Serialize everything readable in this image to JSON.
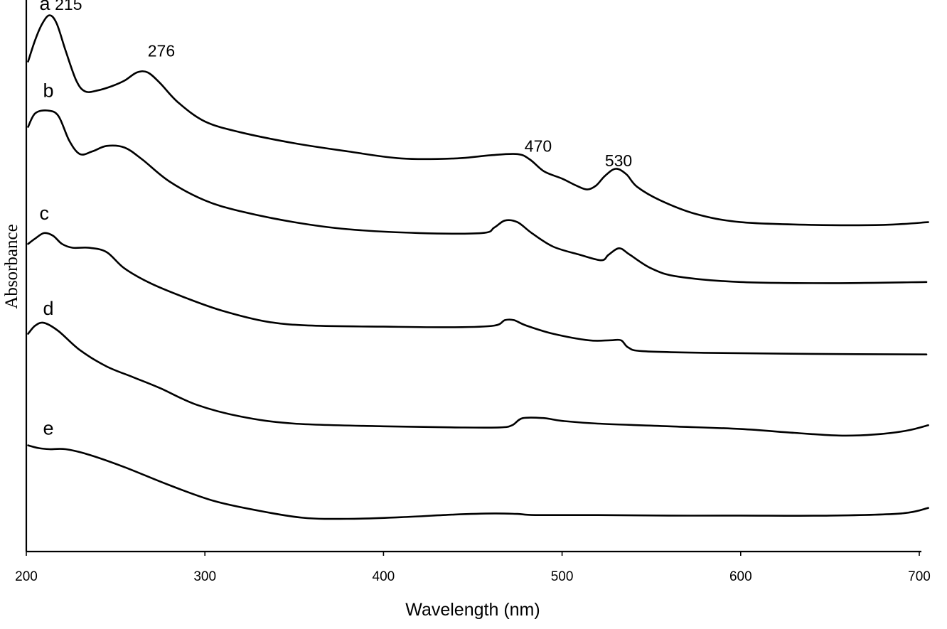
{
  "chart_data": {
    "type": "line",
    "title": "",
    "xlabel": "Wavelength (nm)",
    "ylabel": "Absorbance",
    "xlim": [
      200,
      700
    ],
    "ylim": [
      0,
      10
    ],
    "x_ticks": [
      200,
      300,
      400,
      500,
      600,
      700
    ],
    "y_ticks_shown": false,
    "grid": false,
    "series": [
      {
        "name": "a",
        "points": [
          [
            201,
            9.0
          ],
          [
            205,
            9.4
          ],
          [
            209,
            9.7
          ],
          [
            213,
            9.85
          ],
          [
            217,
            9.7
          ],
          [
            222,
            9.2
          ],
          [
            228,
            8.65
          ],
          [
            233,
            8.45
          ],
          [
            240,
            8.47
          ],
          [
            248,
            8.55
          ],
          [
            255,
            8.65
          ],
          [
            262,
            8.8
          ],
          [
            268,
            8.8
          ],
          [
            275,
            8.6
          ],
          [
            285,
            8.25
          ],
          [
            300,
            7.9
          ],
          [
            320,
            7.7
          ],
          [
            350,
            7.5
          ],
          [
            380,
            7.35
          ],
          [
            410,
            7.22
          ],
          [
            440,
            7.22
          ],
          [
            460,
            7.28
          ],
          [
            475,
            7.3
          ],
          [
            482,
            7.2
          ],
          [
            490,
            6.98
          ],
          [
            500,
            6.85
          ],
          [
            508,
            6.72
          ],
          [
            514,
            6.65
          ],
          [
            519,
            6.72
          ],
          [
            524,
            6.9
          ],
          [
            530,
            7.03
          ],
          [
            536,
            6.93
          ],
          [
            542,
            6.7
          ],
          [
            555,
            6.45
          ],
          [
            575,
            6.2
          ],
          [
            600,
            6.05
          ],
          [
            640,
            6.0
          ],
          [
            680,
            6.0
          ],
          [
            705,
            6.05
          ]
        ]
      },
      {
        "name": "b",
        "points": [
          [
            201,
            7.8
          ],
          [
            205,
            8.05
          ],
          [
            212,
            8.1
          ],
          [
            218,
            8.0
          ],
          [
            224,
            7.55
          ],
          [
            230,
            7.3
          ],
          [
            237,
            7.35
          ],
          [
            245,
            7.45
          ],
          [
            255,
            7.42
          ],
          [
            265,
            7.2
          ],
          [
            280,
            6.8
          ],
          [
            300,
            6.45
          ],
          [
            320,
            6.25
          ],
          [
            350,
            6.05
          ],
          [
            380,
            5.92
          ],
          [
            420,
            5.85
          ],
          [
            455,
            5.85
          ],
          [
            462,
            5.95
          ],
          [
            468,
            6.08
          ],
          [
            475,
            6.05
          ],
          [
            483,
            5.85
          ],
          [
            495,
            5.6
          ],
          [
            510,
            5.45
          ],
          [
            522,
            5.35
          ],
          [
            526,
            5.45
          ],
          [
            532,
            5.57
          ],
          [
            538,
            5.45
          ],
          [
            550,
            5.2
          ],
          [
            565,
            5.05
          ],
          [
            600,
            4.95
          ],
          [
            650,
            4.93
          ],
          [
            704,
            4.95
          ]
        ]
      },
      {
        "name": "c",
        "points": [
          [
            201,
            5.65
          ],
          [
            205,
            5.75
          ],
          [
            210,
            5.85
          ],
          [
            215,
            5.8
          ],
          [
            220,
            5.65
          ],
          [
            226,
            5.58
          ],
          [
            235,
            5.58
          ],
          [
            245,
            5.5
          ],
          [
            255,
            5.2
          ],
          [
            270,
            4.92
          ],
          [
            290,
            4.65
          ],
          [
            310,
            4.42
          ],
          [
            335,
            4.22
          ],
          [
            360,
            4.15
          ],
          [
            400,
            4.13
          ],
          [
            440,
            4.12
          ],
          [
            462,
            4.15
          ],
          [
            468,
            4.25
          ],
          [
            473,
            4.25
          ],
          [
            480,
            4.15
          ],
          [
            495,
            4.0
          ],
          [
            515,
            3.88
          ],
          [
            527,
            3.88
          ],
          [
            533,
            3.88
          ],
          [
            537,
            3.75
          ],
          [
            545,
            3.68
          ],
          [
            580,
            3.65
          ],
          [
            640,
            3.63
          ],
          [
            704,
            3.62
          ]
        ]
      },
      {
        "name": "d",
        "points": [
          [
            201,
            4.0
          ],
          [
            205,
            4.15
          ],
          [
            210,
            4.2
          ],
          [
            218,
            4.05
          ],
          [
            230,
            3.7
          ],
          [
            245,
            3.4
          ],
          [
            260,
            3.2
          ],
          [
            275,
            3.0
          ],
          [
            295,
            2.7
          ],
          [
            320,
            2.48
          ],
          [
            350,
            2.35
          ],
          [
            400,
            2.3
          ],
          [
            440,
            2.28
          ],
          [
            465,
            2.28
          ],
          [
            472,
            2.32
          ],
          [
            478,
            2.45
          ],
          [
            490,
            2.45
          ],
          [
            500,
            2.4
          ],
          [
            520,
            2.35
          ],
          [
            560,
            2.3
          ],
          [
            600,
            2.25
          ],
          [
            630,
            2.18
          ],
          [
            655,
            2.13
          ],
          [
            675,
            2.15
          ],
          [
            693,
            2.22
          ],
          [
            705,
            2.32
          ]
        ]
      },
      {
        "name": "e",
        "points": [
          [
            201,
            1.95
          ],
          [
            207,
            1.9
          ],
          [
            213,
            1.88
          ],
          [
            222,
            1.88
          ],
          [
            235,
            1.78
          ],
          [
            255,
            1.55
          ],
          [
            280,
            1.22
          ],
          [
            305,
            0.93
          ],
          [
            330,
            0.75
          ],
          [
            355,
            0.62
          ],
          [
            380,
            0.6
          ],
          [
            410,
            0.63
          ],
          [
            440,
            0.68
          ],
          [
            462,
            0.7
          ],
          [
            475,
            0.69
          ],
          [
            485,
            0.67
          ],
          [
            520,
            0.67
          ],
          [
            560,
            0.66
          ],
          [
            600,
            0.66
          ],
          [
            650,
            0.66
          ],
          [
            690,
            0.7
          ],
          [
            705,
            0.8
          ]
        ]
      }
    ],
    "series_labels": [
      {
        "text": "a",
        "x": 201,
        "y": 10.05
      },
      {
        "text": "b",
        "x": 203,
        "y": 8.45
      },
      {
        "text": "c",
        "x": 201,
        "y": 6.2
      },
      {
        "text": "d",
        "x": 203,
        "y": 4.45
      },
      {
        "text": "e",
        "x": 203,
        "y": 2.25
      }
    ],
    "annotations": [
      {
        "text": "215",
        "x": 212,
        "y": 10.05
      },
      {
        "text": "276",
        "x": 264,
        "y": 9.2
      },
      {
        "text": "470",
        "x": 475,
        "y": 7.45
      },
      {
        "text": "530",
        "x": 520,
        "y": 7.18
      }
    ]
  }
}
